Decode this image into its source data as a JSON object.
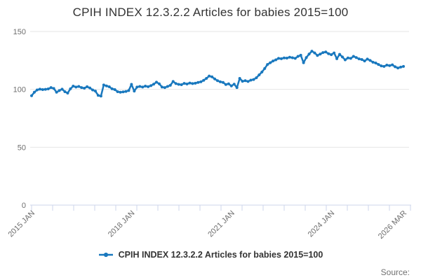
{
  "title": "CPIH INDEX 12.3.2.2 Articles for babies 2015=100",
  "legend": {
    "label": "CPIH INDEX 12.3.2.2 Articles for babies 2015=100"
  },
  "source_label": "Source:",
  "colors": {
    "line": "#1978be",
    "grid": "#e6e6e6",
    "axis": "#ccd6eb",
    "tick_text": "#6e6e6e",
    "title_text": "#333333"
  },
  "chart_data": {
    "type": "line",
    "title": "CPIH INDEX 12.3.2.2 Articles for babies 2015=100",
    "series_name": "CPIH INDEX 12.3.2.2 Articles for babies 2015=100",
    "frequency": "monthly",
    "x_start": "2015 JAN",
    "x_end": "2026 MAR",
    "ylim": [
      0,
      150
    ],
    "y_ticks": [
      0,
      50,
      100,
      150
    ],
    "grid": "horizontal",
    "legend_position": "bottom",
    "x_tick_labels": [
      {
        "label": "2015 JAN",
        "index": 0
      },
      {
        "label": "2018 JAN",
        "index": 36
      },
      {
        "label": "2021 JAN",
        "index": 72
      },
      {
        "label": "2024 JAN",
        "index": 108
      },
      {
        "label": "2026 MAR",
        "index": 134
      }
    ],
    "values": [
      94.5,
      97.5,
      99.5,
      100.2,
      99.8,
      100.0,
      100.4,
      101.5,
      100.8,
      97.5,
      99.0,
      100.2,
      98.0,
      96.8,
      100.5,
      102.8,
      102.0,
      102.5,
      101.5,
      101.0,
      102.3,
      101.2,
      99.5,
      98.5,
      94.8,
      94.2,
      103.8,
      103.0,
      102.2,
      100.5,
      99.8,
      98.0,
      97.5,
      97.8,
      98.2,
      99.0,
      104.3,
      98.5,
      102.0,
      102.5,
      102.0,
      102.8,
      102.3,
      103.2,
      104.5,
      106.2,
      104.8,
      102.0,
      101.5,
      102.5,
      103.5,
      106.8,
      105.0,
      104.3,
      104.0,
      105.2,
      104.6,
      105.5,
      105.0,
      105.3,
      106.0,
      106.5,
      107.8,
      109.5,
      111.5,
      110.8,
      109.0,
      107.5,
      106.5,
      106.0,
      104.2,
      104.8,
      103.0,
      104.5,
      101.5,
      109.5,
      107.0,
      107.5,
      106.8,
      108.0,
      108.5,
      110.0,
      112.5,
      115.0,
      118.0,
      121.5,
      123.0,
      124.5,
      125.5,
      126.8,
      126.5,
      127.2,
      127.0,
      127.8,
      127.3,
      126.8,
      128.5,
      129.5,
      123.0,
      127.5,
      130.5,
      133.0,
      131.5,
      129.3,
      130.5,
      131.8,
      132.3,
      130.8,
      130.0,
      131.5,
      126.5,
      130.3,
      128.0,
      125.5,
      127.2,
      126.8,
      128.5,
      127.5,
      126.3,
      125.8,
      124.5,
      126.2,
      125.0,
      123.5,
      122.8,
      121.5,
      120.3,
      119.8,
      121.0,
      120.5,
      121.2,
      119.5,
      118.5,
      119.2,
      119.8
    ]
  }
}
